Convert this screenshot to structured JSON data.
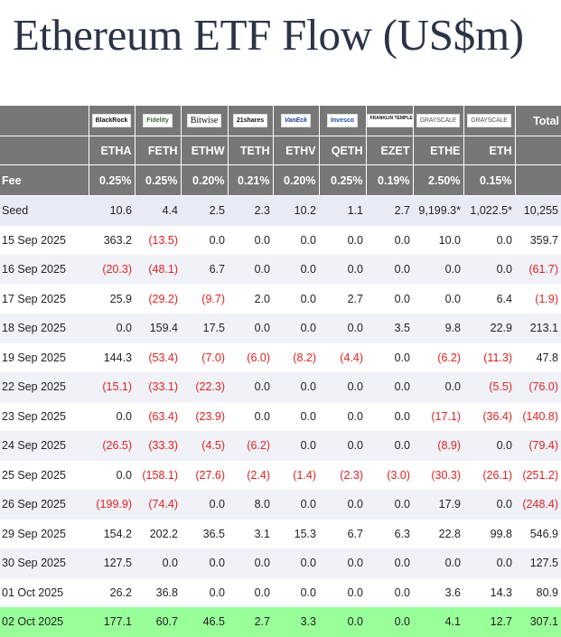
{
  "title": "Ethereum ETF Flow (US$m)",
  "issuers": [
    "BlackRock",
    "Fidelity",
    "Bitwise",
    "21shares",
    "VanEck",
    "Invesco",
    "FRANKLIN TEMPLETON",
    "GRAYSCALE",
    "GRAYSCALE"
  ],
  "total_label": "Total",
  "tickers": [
    "ETHA",
    "FETH",
    "ETHW",
    "TETH",
    "ETHV",
    "QETH",
    "EZET",
    "ETHE",
    "ETH"
  ],
  "fee_label": "Fee",
  "fees": [
    "0.25%",
    "0.25%",
    "0.20%",
    "0.21%",
    "0.20%",
    "0.25%",
    "0.19%",
    "2.50%",
    "0.15%"
  ],
  "rows": [
    {
      "date": "Seed",
      "values": [
        "10.6",
        "4.4",
        "2.5",
        "2.3",
        "10.2",
        "1.1",
        "2.7",
        "9,199.3*",
        "1,022.5*",
        "10,255"
      ]
    },
    {
      "date": "15 Sep 2025",
      "values": [
        "363.2",
        "(13.5)",
        "0.0",
        "0.0",
        "0.0",
        "0.0",
        "0.0",
        "10.0",
        "0.0",
        "359.7"
      ]
    },
    {
      "date": "16 Sep 2025",
      "values": [
        "(20.3)",
        "(48.1)",
        "6.7",
        "0.0",
        "0.0",
        "0.0",
        "0.0",
        "0.0",
        "0.0",
        "(61.7)"
      ]
    },
    {
      "date": "17 Sep 2025",
      "values": [
        "25.9",
        "(29.2)",
        "(9.7)",
        "2.0",
        "0.0",
        "2.7",
        "0.0",
        "0.0",
        "6.4",
        "(1.9)"
      ]
    },
    {
      "date": "18 Sep 2025",
      "values": [
        "0.0",
        "159.4",
        "17.5",
        "0.0",
        "0.0",
        "0.0",
        "3.5",
        "9.8",
        "22.9",
        "213.1"
      ]
    },
    {
      "date": "19 Sep 2025",
      "values": [
        "144.3",
        "(53.4)",
        "(7.0)",
        "(6.0)",
        "(8.2)",
        "(4.4)",
        "0.0",
        "(6.2)",
        "(11.3)",
        "47.8"
      ]
    },
    {
      "date": "22 Sep 2025",
      "values": [
        "(15.1)",
        "(33.1)",
        "(22.3)",
        "0.0",
        "0.0",
        "0.0",
        "0.0",
        "0.0",
        "(5.5)",
        "(76.0)"
      ]
    },
    {
      "date": "23 Sep 2025",
      "values": [
        "0.0",
        "(63.4)",
        "(23.9)",
        "0.0",
        "0.0",
        "0.0",
        "0.0",
        "(17.1)",
        "(36.4)",
        "(140.8)"
      ]
    },
    {
      "date": "24 Sep 2025",
      "values": [
        "(26.5)",
        "(33.3)",
        "(4.5)",
        "(6.2)",
        "0.0",
        "0.0",
        "0.0",
        "(8.9)",
        "0.0",
        "(79.4)"
      ]
    },
    {
      "date": "25 Sep 2025",
      "values": [
        "0.0",
        "(158.1)",
        "(27.6)",
        "(2.4)",
        "(1.4)",
        "(2.3)",
        "(3.0)",
        "(30.3)",
        "(26.1)",
        "(251.2)"
      ]
    },
    {
      "date": "26 Sep 2025",
      "values": [
        "(199.9)",
        "(74.4)",
        "0.0",
        "8.0",
        "0.0",
        "0.0",
        "0.0",
        "17.9",
        "0.0",
        "(248.4)"
      ]
    },
    {
      "date": "29 Sep 2025",
      "values": [
        "154.2",
        "202.2",
        "36.5",
        "3.1",
        "15.3",
        "6.7",
        "6.3",
        "22.8",
        "99.8",
        "546.9"
      ]
    },
    {
      "date": "30 Sep 2025",
      "values": [
        "127.5",
        "0.0",
        "0.0",
        "0.0",
        "0.0",
        "0.0",
        "0.0",
        "0.0",
        "0.0",
        "127.5"
      ]
    },
    {
      "date": "01 Oct 2025",
      "values": [
        "26.2",
        "36.8",
        "0.0",
        "0.0",
        "0.0",
        "0.0",
        "0.0",
        "3.6",
        "14.3",
        "80.9"
      ]
    },
    {
      "date": "02 Oct 2025",
      "values": [
        "177.1",
        "60.7",
        "46.5",
        "2.7",
        "3.3",
        "0.0",
        "0.0",
        "4.1",
        "12.7",
        "307.1"
      ]
    }
  ],
  "colors": {
    "header_bg": "#777777",
    "negative": "#e02020",
    "highlight_row": "#99ff99",
    "title": "#2b3346"
  }
}
